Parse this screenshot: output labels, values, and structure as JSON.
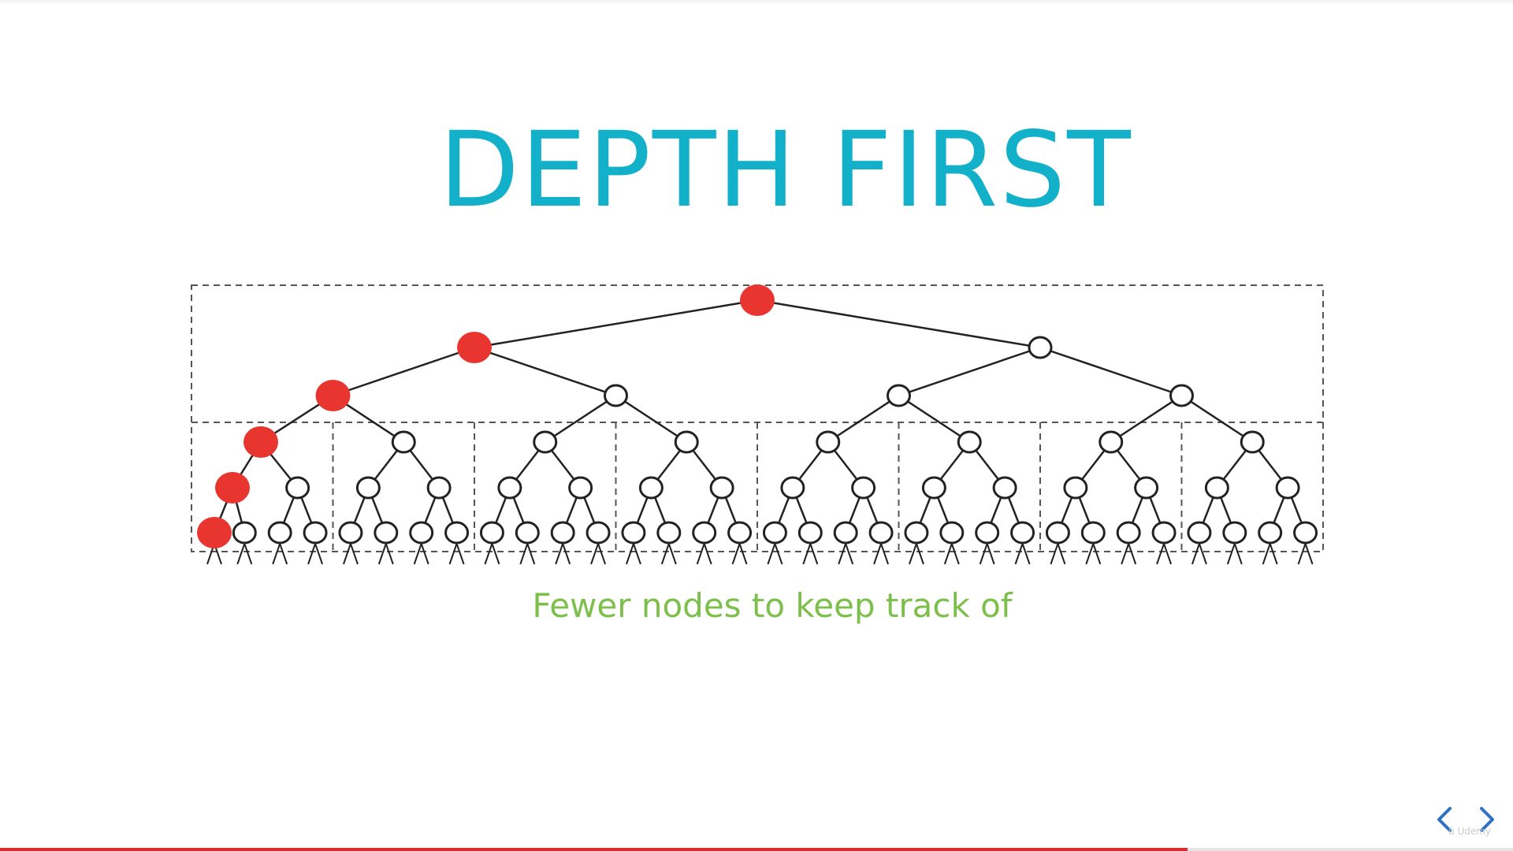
{
  "slide": {
    "title": "DEPTH FIRST",
    "caption": "Fewer nodes to keep track of",
    "watermark_mark": "ú",
    "watermark_text": "Udemy",
    "progress_fraction": 0.785
  },
  "colors": {
    "title": "#12b0c9",
    "caption": "#7cbf4a",
    "visited_node": "#e8352f",
    "unvisited_node": "#ffffff",
    "edge": "#222222",
    "box_dash": "#555555",
    "progress": "#d72d2d",
    "nav_arrow": "#2f6fc4"
  },
  "tree": {
    "type": "binary-tree",
    "depth_shown": 6,
    "visited_path_depths": [
      0,
      1,
      2,
      3,
      4,
      5
    ],
    "visited_path": "leftmost branch",
    "edge_style": "solid",
    "box_style": "dashed"
  },
  "icons": {
    "prev": "chevron-left-icon",
    "next": "chevron-right-icon"
  }
}
